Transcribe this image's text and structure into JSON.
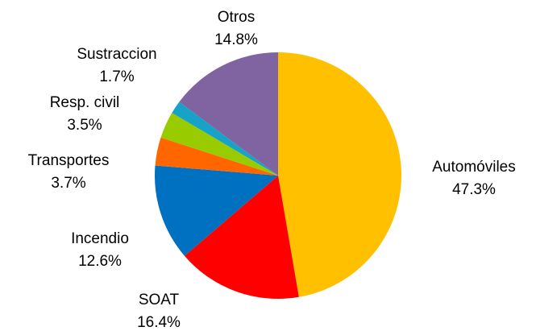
{
  "chart_data": {
    "type": "pie",
    "categories": [
      "Automóviles",
      "SOAT",
      "Incendio",
      "Transportes",
      "Resp. civil",
      "Sustraccion",
      "Otros"
    ],
    "values": [
      47.3,
      16.4,
      12.6,
      3.7,
      3.5,
      1.7,
      14.8
    ],
    "value_labels": [
      "47.3%",
      "16.4%",
      "12.6%",
      "3.7%",
      "3.5%",
      "1.7%",
      "14.8%"
    ],
    "colors": [
      "#FFC000",
      "#FF0000",
      "#0070C0",
      "#FF6600",
      "#99CC00",
      "#17A2C8",
      "#8064A2"
    ]
  }
}
